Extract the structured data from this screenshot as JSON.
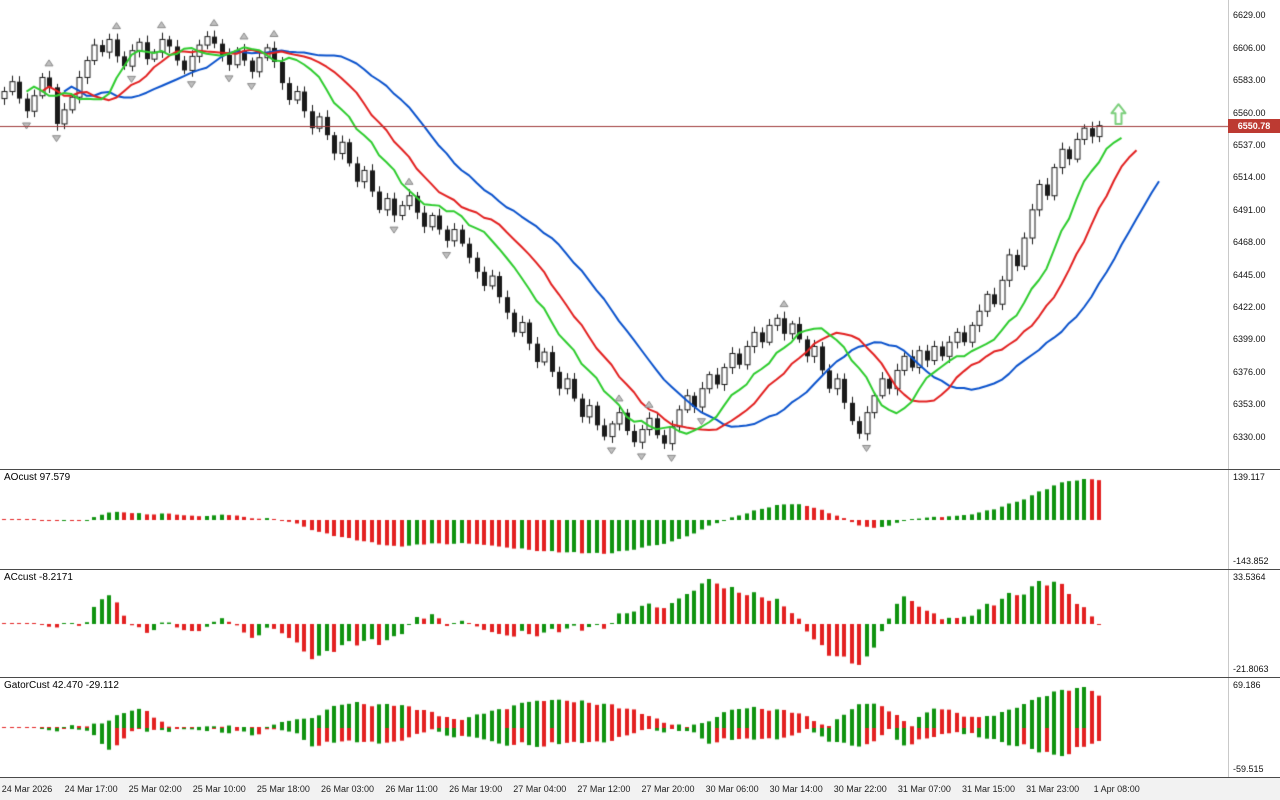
{
  "chart": {
    "price_label": "6550.78",
    "price_axis_ticks": [
      "6629.00",
      "6606.00",
      "6583.00",
      "6560.00",
      "6537.00",
      "6514.00",
      "6491.00",
      "6468.00",
      "6445.00",
      "6422.00",
      "6399.00",
      "6376.00",
      "6353.00",
      "6330.00"
    ],
    "colors": {
      "candle": "#1a1a1a",
      "jaw": "#0a52cc",
      "teeth": "#e22020",
      "lips": "#2ecc2e",
      "hist_up": "#0f930f",
      "hist_down": "#e32020",
      "fractal": "#bfbfbf",
      "fractal_edge": "#8a8a8a",
      "price_line": "#9e3a3a",
      "badge": "#bd3a32",
      "arrow": "#7dcf7d"
    }
  },
  "panels": {
    "ao": {
      "title": "AOcust 97.579",
      "max_label": "139.117",
      "min_label": "-143.852"
    },
    "ac": {
      "title": "ACcust -8.2171",
      "max_label": "33.5364",
      "min_label": "-21.8063"
    },
    "gator": {
      "title": "GatorCust 42.470 -29.112",
      "max_label": "69.186",
      "min_label": "-59.515"
    }
  },
  "chart_data": {
    "type": "candlestick",
    "ylim": [
      6307,
      6640
    ],
    "open_first": 6570,
    "close": [
      6575,
      6582,
      6570,
      6561,
      6572,
      6585,
      6578,
      6552,
      6562,
      6571,
      6585,
      6597,
      6608,
      6603,
      6612,
      6600,
      6593,
      6604,
      6610,
      6598,
      6603,
      6612,
      6607,
      6597,
      6590,
      6600,
      6608,
      6614,
      6609,
      6601,
      6594,
      6604,
      6597,
      6589,
      6599,
      6606,
      6596,
      6581,
      6569,
      6575,
      6561,
      6549,
      6557,
      6544,
      6531,
      6539,
      6524,
      6511,
      6519,
      6504,
      6491,
      6499,
      6487,
      6494,
      6501,
      6489,
      6479,
      6487,
      6477,
      6469,
      6477,
      6467,
      6457,
      6447,
      6437,
      6444,
      6429,
      6418,
      6404,
      6411,
      6396,
      6383,
      6390,
      6376,
      6364,
      6371,
      6357,
      6344,
      6352,
      6338,
      6330,
      6339,
      6347,
      6334,
      6326,
      6335,
      6343,
      6331,
      6325,
      6337,
      6349,
      6359,
      6351,
      6364,
      6374,
      6367,
      6379,
      6389,
      6381,
      6394,
      6404,
      6397,
      6409,
      6414,
      6403,
      6410,
      6399,
      6387,
      6394,
      6377,
      6364,
      6371,
      6354,
      6341,
      6332,
      6347,
      6359,
      6371,
      6364,
      6377,
      6387,
      6379,
      6391,
      6384,
      6394,
      6387,
      6397,
      6404,
      6397,
      6409,
      6419,
      6431,
      6424,
      6441,
      6459,
      6451,
      6471,
      6491,
      6509,
      6501,
      6521,
      6534,
      6527,
      6541,
      6549,
      6543,
      6550.78
    ],
    "overlays": {
      "alligator": {
        "jaw": {
          "period": 13,
          "shift": 8
        },
        "teeth": {
          "period": 8,
          "shift": 5
        },
        "lips": {
          "period": 5,
          "shift": 3
        }
      },
      "fractals": true,
      "current_price": 6550.78,
      "buy_arrow": {
        "price_top": 6566,
        "price_bottom": 6552
      }
    },
    "subcharts": [
      {
        "name": "Awesome Oscillator",
        "label": "AOcust 97.579",
        "range": [
          -143.852,
          139.117
        ]
      },
      {
        "name": "Accelerator Oscillator",
        "label": "ACcust -8.2171",
        "range": [
          -21.8063,
          33.5364
        ]
      },
      {
        "name": "Gator Oscillator",
        "label": "GatorCust 42.470 -29.112",
        "range": [
          -59.515,
          69.186
        ]
      }
    ],
    "x_labels": [
      "24 Mar 2026",
      "24 Mar 17:00",
      "25 Mar 02:00",
      "25 Mar 10:00",
      "25 Mar 18:00",
      "26 Mar 03:00",
      "26 Mar 11:00",
      "26 Mar 19:00",
      "27 Mar 04:00",
      "27 Mar 12:00",
      "27 Mar 20:00",
      "30 Mar 06:00",
      "30 Mar 14:00",
      "30 Mar 22:00",
      "31 Mar 07:00",
      "31 Mar 15:00",
      "31 Mar 23:00",
      "1 Apr 08:00"
    ]
  }
}
